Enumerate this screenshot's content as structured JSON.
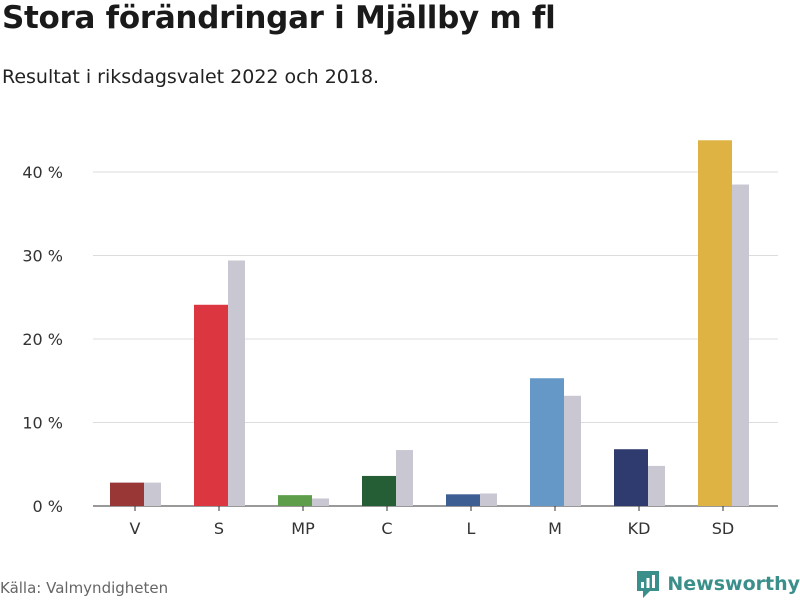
{
  "chart_data": {
    "type": "bar",
    "title": "Stora förändringar i Mjällby m fl",
    "subtitle": "Resultat i riksdagsvalet 2022 och 2018.",
    "categories": [
      "V",
      "S",
      "MP",
      "C",
      "L",
      "M",
      "KD",
      "SD"
    ],
    "series": [
      {
        "name": "2022",
        "values": [
          2.8,
          24.1,
          1.3,
          3.6,
          1.4,
          15.3,
          6.8,
          43.8
        ]
      },
      {
        "name": "2018",
        "values": [
          2.8,
          29.4,
          0.9,
          6.7,
          1.5,
          13.2,
          4.8,
          38.5
        ]
      }
    ],
    "colors_2022": [
      "#993736",
      "#dc3740",
      "#5e9e4a",
      "#255e34",
      "#3d5e93",
      "#6598c6",
      "#2f3b6e",
      "#deb344"
    ],
    "color_2018": "#c8c7d2",
    "ylim": [
      0,
      45
    ],
    "yticks": [
      0,
      10,
      20,
      30,
      40
    ],
    "ytick_labels": [
      "0 %",
      "10 %",
      "20 %",
      "30 %",
      "40 %"
    ],
    "xlabel": "",
    "ylabel": "",
    "grid": true
  },
  "footer": {
    "source": "Källa: Valmyndigheten",
    "brand": "Newsworthy",
    "brand_color": "#3a8f8a"
  }
}
